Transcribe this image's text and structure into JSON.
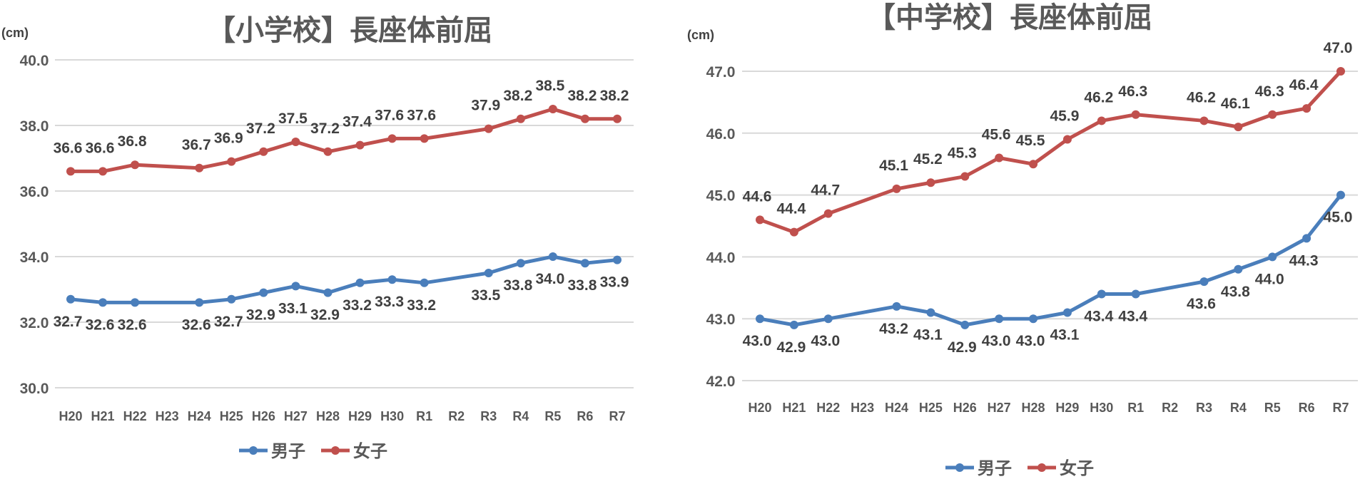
{
  "colors": {
    "boys": "#4a7ebb",
    "girls": "#c0504d",
    "grid": "#d9d9d9"
  },
  "chart_data": [
    {
      "type": "line",
      "title": "【小学校】長座体前屈",
      "ylabel": "(cm)",
      "ylim": [
        30,
        40
      ],
      "yticks": [
        "30.0",
        "32.0",
        "34.0",
        "36.0",
        "38.0",
        "40.0"
      ],
      "grid": true,
      "legend_placement": "bottom",
      "categories": [
        "H20",
        "H21",
        "H22",
        "H23",
        "H24",
        "H25",
        "H26",
        "H27",
        "H28",
        "H29",
        "H30",
        "R1",
        "R2",
        "R3",
        "R4",
        "R5",
        "R6",
        "R7"
      ],
      "series": [
        {
          "name": "男子",
          "values": [
            32.7,
            32.6,
            32.6,
            null,
            32.6,
            32.7,
            32.9,
            33.1,
            32.9,
            33.2,
            33.3,
            33.2,
            null,
            33.5,
            33.8,
            34.0,
            33.8,
            33.9
          ]
        },
        {
          "name": "女子",
          "values": [
            36.6,
            36.6,
            36.8,
            null,
            36.7,
            36.9,
            37.2,
            37.5,
            37.2,
            37.4,
            37.6,
            37.6,
            null,
            37.9,
            38.2,
            38.5,
            38.2,
            38.2
          ]
        }
      ]
    },
    {
      "type": "line",
      "title": "【中学校】長座体前屈",
      "ylabel": "(cm)",
      "ylim": [
        42,
        47
      ],
      "yticks": [
        "42.0",
        "43.0",
        "44.0",
        "45.0",
        "46.0",
        "47.0"
      ],
      "grid": true,
      "legend_placement": "bottom",
      "categories": [
        "H20",
        "H21",
        "H22",
        "H23",
        "H24",
        "H25",
        "H26",
        "H27",
        "H28",
        "H29",
        "H30",
        "R1",
        "R2",
        "R3",
        "R4",
        "R5",
        "R6",
        "R7"
      ],
      "series": [
        {
          "name": "男子",
          "values": [
            43.0,
            42.9,
            43.0,
            null,
            43.2,
            43.1,
            42.9,
            43.0,
            43.0,
            43.1,
            43.4,
            43.4,
            null,
            43.6,
            43.8,
            44.0,
            44.3,
            45.0
          ]
        },
        {
          "name": "女子",
          "values": [
            44.6,
            44.4,
            44.7,
            null,
            45.1,
            45.2,
            45.3,
            45.6,
            45.5,
            45.9,
            46.2,
            46.3,
            null,
            46.2,
            46.1,
            46.3,
            46.4,
            47.0
          ]
        }
      ]
    }
  ]
}
